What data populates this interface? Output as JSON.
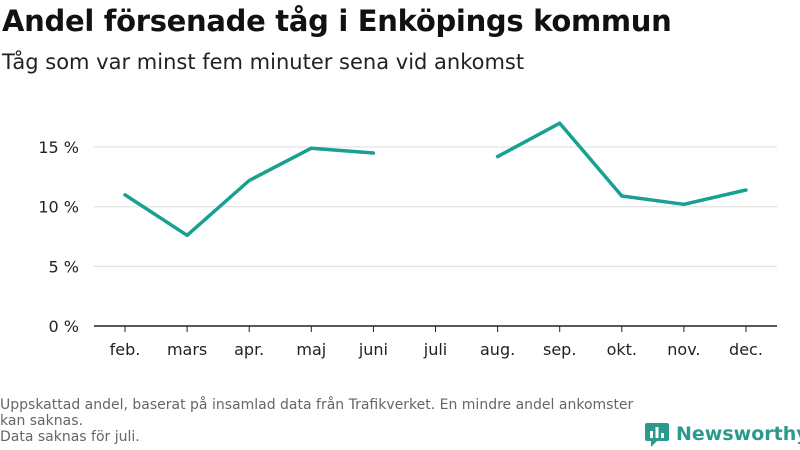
{
  "title": "Andel försenade tåg i Enköpings kommun",
  "subtitle": "Tåg som var minst fem minuter sena vid ankomst",
  "footnote": {
    "line1": "Uppskattad andel, baserat på insamlad data från Trafikverket. En mindre andel ankomster kan saknas.",
    "line2": "Data saknas för juli."
  },
  "brand": {
    "name": "Newsworthy",
    "icon": "newsworthy-logo-icon",
    "color": "#2b9a8c"
  },
  "chart_data": {
    "type": "line",
    "title": "Andel försenade tåg i Enköpings kommun",
    "subtitle": "Tåg som var minst fem minuter sena vid ankomst",
    "categories": [
      "feb.",
      "mars",
      "apr.",
      "maj",
      "juni",
      "juli",
      "aug.",
      "sep.",
      "okt.",
      "nov.",
      "dec."
    ],
    "values": [
      11.0,
      7.6,
      12.2,
      14.9,
      14.5,
      null,
      14.2,
      17.0,
      10.9,
      10.2,
      11.4
    ],
    "y_ticks": [
      0,
      5,
      10,
      15
    ],
    "y_tick_labels": [
      "0 %",
      "5 %",
      "10 %",
      "15 %"
    ],
    "ylim": [
      0,
      17
    ],
    "grid": true,
    "line_color": "#18a190",
    "xlabel": "",
    "ylabel": ""
  }
}
